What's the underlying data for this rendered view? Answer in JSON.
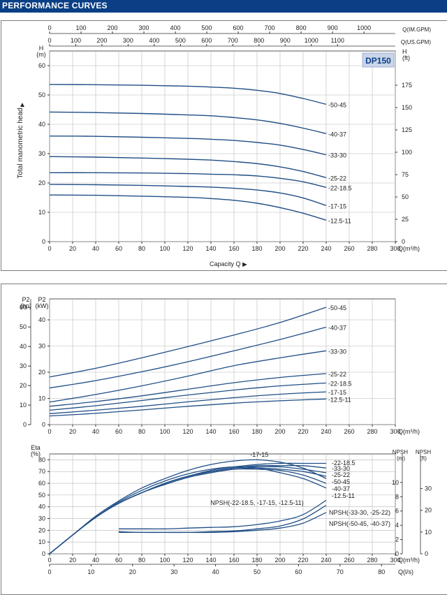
{
  "page": {
    "title": "PERFORMANCE CURVES",
    "colors": {
      "header": "#0a3f86",
      "curve": "#1f4e86",
      "grid": "#b8b8b8",
      "badge": "#c9d5e8"
    }
  },
  "chart_data": [
    {
      "type": "line",
      "id": "head",
      "badge": "DP150",
      "ylabel": "Total manometric head",
      "ylabel_arrow": "▲",
      "xlabel": "Capacity Q",
      "xlabel_arrow": "►",
      "left_unit_top": "H",
      "left_unit_bottom": "(m)",
      "right_unit_top": "H",
      "right_unit_bottom": "(ft)",
      "x_unit": "Q(m³/h)",
      "top_axis1_label": "Q(IM.GPM)",
      "top_axis2_label": "Q(US.GPM)",
      "xlim": [
        0,
        300
      ],
      "ylim": [
        0,
        65
      ],
      "x_ticks": [
        "0",
        "20",
        "40",
        "60",
        "80",
        "100",
        "120",
        "140",
        "160",
        "180",
        "200",
        "220",
        "240",
        "260",
        "280",
        "300"
      ],
      "y_ticks": [
        "0",
        "10",
        "20",
        "30",
        "40",
        "50",
        "60"
      ],
      "right_ticks": [
        "0",
        "25",
        "50",
        "75",
        "100",
        "125",
        "150",
        "175"
      ],
      "top_ticks_im": [
        "0",
        "100",
        "200",
        "300",
        "400",
        "500",
        "600",
        "700",
        "800",
        "900",
        "1000"
      ],
      "top_ticks_us": [
        "0",
        "100",
        "200",
        "300",
        "400",
        "500",
        "600",
        "700",
        "800",
        "900",
        "1000",
        "1100"
      ],
      "x": [
        0,
        40,
        80,
        120,
        140,
        160,
        180,
        200,
        220,
        240
      ],
      "series": [
        {
          "name": "-50-45",
          "values": [
            53.6,
            53.5,
            53.3,
            53.0,
            52.7,
            52.3,
            51.6,
            50.5,
            48.8,
            46.8
          ]
        },
        {
          "name": "-40-37",
          "values": [
            44.2,
            44.0,
            43.7,
            43.2,
            42.9,
            42.3,
            41.5,
            40.3,
            38.7,
            36.8
          ]
        },
        {
          "name": "-33-30",
          "values": [
            36.0,
            35.9,
            35.6,
            35.2,
            34.9,
            34.5,
            33.8,
            32.9,
            31.4,
            29.6
          ]
        },
        {
          "name": "-25-22",
          "values": [
            29.0,
            28.8,
            28.5,
            28.1,
            27.8,
            27.3,
            26.6,
            25.5,
            23.9,
            21.8
          ]
        },
        {
          "name": "-22-18.5",
          "values": [
            23.5,
            23.5,
            23.4,
            23.2,
            23.0,
            22.8,
            22.4,
            21.6,
            20.4,
            18.5
          ]
        },
        {
          "name": "-17-15",
          "values": [
            19.5,
            19.4,
            19.2,
            18.8,
            18.6,
            18.2,
            17.6,
            16.6,
            14.9,
            12.3
          ]
        },
        {
          "name": "-12.5-11",
          "values": [
            15.9,
            15.8,
            15.5,
            15.1,
            14.7,
            14.1,
            13.1,
            11.6,
            9.7,
            7.3
          ]
        }
      ]
    },
    {
      "type": "line",
      "id": "power",
      "left_unit_top": "P2",
      "left_unit_bottom": "(hp)",
      "right_unit_top": "P2",
      "right_unit_bottom": "(kW)",
      "x_unit": "Q(m³/h)",
      "xlim": [
        0,
        300
      ],
      "ylim": [
        0,
        48
      ],
      "x_ticks": [
        "0",
        "20",
        "40",
        "60",
        "80",
        "100",
        "120",
        "140",
        "160",
        "180",
        "200",
        "220",
        "240",
        "260",
        "280",
        "300"
      ],
      "hp_ticks": [
        "0",
        "10",
        "20",
        "30",
        "40",
        "50",
        "60"
      ],
      "kw_ticks": [
        "0",
        "10",
        "20",
        "30",
        "40"
      ],
      "x": [
        0,
        40,
        80,
        120,
        160,
        200,
        240
      ],
      "series": [
        {
          "name": "-50-45",
          "values": [
            18.2,
            21.5,
            25.5,
            29.8,
            34.2,
            39.0,
            44.8
          ]
        },
        {
          "name": "-40-37",
          "values": [
            14.0,
            16.8,
            20.2,
            24.0,
            28.2,
            32.5,
            37.2
          ]
        },
        {
          "name": "-33-30",
          "values": [
            8.6,
            11.5,
            14.8,
            18.5,
            22.5,
            25.5,
            28.2
          ]
        },
        {
          "name": "-25-22",
          "values": [
            7.0,
            8.8,
            11.0,
            13.5,
            16.0,
            18.0,
            19.5
          ]
        },
        {
          "name": "-22-18.5",
          "values": [
            5.5,
            7.2,
            9.2,
            11.3,
            13.2,
            14.8,
            15.9
          ]
        },
        {
          "name": "-17-15",
          "values": [
            4.2,
            5.5,
            7.0,
            8.7,
            10.3,
            11.6,
            12.5
          ]
        },
        {
          "name": "-12.5-11",
          "values": [
            3.3,
            4.3,
            5.6,
            7.0,
            8.2,
            9.1,
            9.8
          ]
        }
      ]
    },
    {
      "type": "line",
      "id": "efficiency",
      "left_unit_top": "Eta",
      "left_unit_bottom": "(%)",
      "npsh_m_label_top": "NPSH",
      "npsh_m_label_bottom": "(m)",
      "npsh_ft_label_top": "NPSH",
      "npsh_ft_label_bottom": "(ft)",
      "x_unit": "Q(m³/h)",
      "ls_unit": "Q(l/s)",
      "xlim": [
        0,
        300
      ],
      "ylim": [
        0,
        85
      ],
      "x_ticks": [
        "0",
        "20",
        "40",
        "60",
        "80",
        "100",
        "120",
        "140",
        "160",
        "180",
        "200",
        "220",
        "240",
        "260",
        "280",
        "300"
      ],
      "eta_ticks": [
        "0",
        "10",
        "20",
        "30",
        "40",
        "50",
        "60",
        "70",
        "80"
      ],
      "npsh_m_ticks": [
        "0",
        "2",
        "4",
        "6",
        "8",
        "10"
      ],
      "npsh_ft_ticks": [
        "0",
        "10",
        "20",
        "30"
      ],
      "ls_ticks": [
        "0",
        "10",
        "20",
        "30",
        "40",
        "50",
        "60",
        "70",
        "80"
      ],
      "x": [
        0,
        20,
        40,
        60,
        80,
        100,
        120,
        140,
        160,
        180,
        200,
        220,
        240
      ],
      "eta_series": [
        {
          "name": "-22-18.5",
          "values": [
            0,
            16,
            31,
            43,
            52,
            60,
            66,
            71,
            74,
            76,
            77,
            77,
            77
          ]
        },
        {
          "name": "-33-30",
          "values": [
            0,
            16,
            31,
            43,
            52,
            60,
            66,
            70,
            73,
            75,
            75,
            75,
            73
          ]
        },
        {
          "name": "-25-22",
          "values": [
            0,
            16,
            31,
            43,
            52,
            60,
            66,
            70,
            73,
            74,
            74,
            72,
            69
          ]
        },
        {
          "name": "-50-45",
          "values": [
            0,
            16,
            31,
            43,
            52,
            59,
            65,
            69,
            72,
            73,
            72,
            70,
            66
          ]
        },
        {
          "name": "-40-37",
          "values": [
            0,
            16,
            31,
            43,
            52,
            59,
            65,
            69,
            72,
            72,
            71,
            67,
            60
          ]
        },
        {
          "name": "-17-15",
          "values": [
            0,
            16,
            32,
            45,
            56,
            64,
            71,
            76,
            79,
            80,
            78,
            73,
            64
          ]
        },
        {
          "name": "-12.5-11",
          "values": [
            0,
            16,
            31,
            44,
            54,
            62,
            68,
            72,
            74,
            73,
            69,
            64,
            56
          ]
        }
      ],
      "npsh_x": [
        60,
        80,
        100,
        120,
        140,
        160,
        180,
        200,
        220,
        240
      ],
      "npsh_series": [
        {
          "name": "NPSH(-22-18.5, -17-15, -12.5-11)",
          "values": [
            3.5,
            3.5,
            3.5,
            3.6,
            3.7,
            3.8,
            4.1,
            4.6,
            5.5,
            7.5
          ]
        },
        {
          "name": "NPSH(-33-30, -25-22)",
          "values": [
            3.1,
            3.0,
            3.0,
            3.0,
            3.1,
            3.2,
            3.5,
            3.9,
            4.9,
            6.8
          ]
        },
        {
          "name": "NPSH(-50-45, -40-37)",
          "values": [
            3.0,
            3.0,
            3.0,
            3.0,
            3.0,
            3.1,
            3.3,
            3.6,
            4.3,
            5.8
          ]
        }
      ],
      "labels": {
        "npsh_a": "NPSH(-22-18.5, -17-15, -12.5-11)",
        "npsh_b": "NPSH(-33-30, -25-22)",
        "npsh_c": "NPSH(-50-45, -40-37)"
      }
    }
  ]
}
